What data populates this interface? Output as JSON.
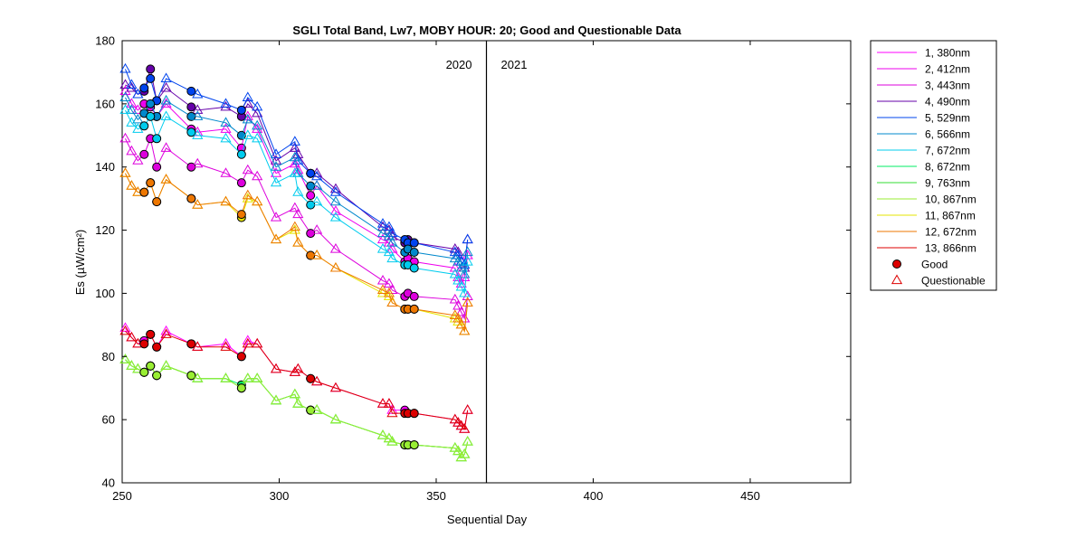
{
  "chart_data": {
    "type": "line",
    "title": "SGLI Total Band,  Lw7, MOBY HOUR: 20;  Good and Questionable Data",
    "xlabel": "Sequential Day",
    "ylabel": "Es (µW/cm²)",
    "xlim": [
      250,
      482
    ],
    "ylim": [
      40,
      180
    ],
    "xticks": [
      250,
      300,
      350,
      400,
      450
    ],
    "yticks": [
      40,
      60,
      80,
      100,
      120,
      140,
      160,
      180
    ],
    "grid": false,
    "legend_position": "outside-right",
    "year_divider": {
      "x": 366,
      "left_label": "2020",
      "right_label": "2021"
    },
    "legend_markers": {
      "good_label": "Good",
      "questionable_label": "Questionable"
    },
    "x": [
      251,
      253,
      255,
      257,
      259,
      261,
      264,
      272,
      274,
      283,
      288,
      290,
      293,
      299,
      305,
      306,
      310,
      312,
      318,
      333,
      335,
      336,
      340,
      341,
      343,
      356,
      357,
      358,
      359,
      360
    ],
    "series": [
      {
        "name": "1, 380nm",
        "color": "#ff00ff",
        "values": [
          89,
          86,
          84,
          85,
          87,
          83,
          88,
          84,
          83,
          84,
          80,
          85,
          84,
          76,
          75,
          76,
          73,
          72,
          70,
          65,
          65,
          63,
          63,
          62,
          62,
          60,
          59,
          58,
          57,
          63
        ],
        "good_x": [
          256,
          257,
          259,
          261,
          272,
          288,
          310,
          340,
          341,
          343
        ]
      },
      {
        "name": "2, 412nm",
        "color": "#ee00ee",
        "values": [
          164,
          160,
          158,
          160,
          159,
          156,
          160,
          152,
          151,
          152,
          146,
          156,
          152,
          138,
          141,
          139,
          131,
          134,
          126,
          117,
          116,
          114,
          110,
          111,
          110,
          108,
          105,
          103,
          105,
          112
        ],
        "good_x": [
          256,
          257,
          259,
          261,
          272,
          288,
          310,
          340,
          341,
          343
        ]
      },
      {
        "name": "3, 443nm",
        "color": "#dd00dd",
        "values": [
          149,
          145,
          142,
          144,
          149,
          140,
          146,
          140,
          141,
          138,
          135,
          139,
          137,
          124,
          127,
          125,
          119,
          120,
          114,
          104,
          103,
          101,
          99,
          100,
          99,
          98,
          96,
          94,
          92,
          99
        ],
        "good_x": [
          256,
          257,
          259,
          261,
          272,
          288,
          310,
          340,
          341,
          343
        ]
      },
      {
        "name": "4, 490nm",
        "color": "#6600aa",
        "values": [
          166,
          165,
          163,
          164,
          171,
          161,
          165,
          159,
          158,
          159,
          156,
          160,
          157,
          142,
          146,
          144,
          138,
          138,
          133,
          121,
          120,
          118,
          116,
          117,
          116,
          114,
          113,
          110,
          108,
          117
        ],
        "good_x": [
          256,
          257,
          259,
          261,
          272,
          288,
          310,
          340,
          341,
          343
        ]
      },
      {
        "name": "5, 529nm",
        "color": "#0044ee",
        "values": [
          171,
          166,
          163,
          165,
          168,
          161,
          168,
          164,
          163,
          160,
          158,
          162,
          159,
          144,
          148,
          142,
          138,
          137,
          132,
          122,
          121,
          119,
          117,
          116,
          116,
          113,
          112,
          110,
          109,
          117
        ],
        "good_x": [
          256,
          257,
          259,
          261,
          272,
          288,
          310,
          340,
          341,
          343
        ]
      },
      {
        "name": "6, 566nm",
        "color": "#0088cc",
        "values": [
          162,
          158,
          155,
          157,
          160,
          156,
          161,
          156,
          156,
          154,
          150,
          155,
          153,
          140,
          143,
          138,
          134,
          134,
          129,
          119,
          118,
          116,
          113,
          114,
          113,
          111,
          110,
          108,
          106,
          113
        ],
        "good_x": [
          256,
          257,
          259,
          261,
          272,
          288,
          310,
          340,
          341,
          343
        ]
      },
      {
        "name": "7, 672nm",
        "color": "#00ccee",
        "values": [
          158,
          154,
          152,
          153,
          156,
          149,
          156,
          151,
          150,
          149,
          144,
          150,
          149,
          135,
          138,
          132,
          128,
          129,
          124,
          114,
          113,
          111,
          109,
          109,
          108,
          106,
          104,
          102,
          100,
          110
        ],
        "good_x": [
          256,
          257,
          259,
          261,
          272,
          288,
          310,
          340,
          341,
          343
        ]
      },
      {
        "name": "8, 672nm",
        "color": "#00ee66",
        "values": [
          79,
          77,
          76,
          75,
          77,
          74,
          77,
          74,
          73,
          73,
          71,
          73,
          73,
          66,
          68,
          65,
          63,
          63,
          60,
          55,
          54,
          53,
          52,
          52,
          52,
          51,
          50,
          48,
          49,
          53
        ],
        "good_x": [
          256,
          257,
          259,
          261,
          272,
          288,
          310,
          340,
          341,
          343
        ]
      },
      {
        "name": "9, 763nm",
        "color": "#33dd33",
        "values": [
          79,
          77,
          76,
          75,
          77,
          74,
          77,
          74,
          73,
          73,
          70,
          73,
          73,
          66,
          68,
          65,
          63,
          63,
          60,
          55,
          54,
          53,
          52,
          52,
          52,
          51,
          50,
          48,
          49,
          53
        ],
        "good_x": [
          256,
          257,
          259,
          261,
          272,
          288,
          310,
          340,
          341,
          343
        ]
      },
      {
        "name": "10, 867nm",
        "color": "#99ee33",
        "values": [
          79,
          77,
          76,
          75,
          77,
          74,
          77,
          74,
          73,
          73,
          70,
          73,
          73,
          66,
          68,
          65,
          63,
          63,
          60,
          55,
          54,
          53,
          52,
          52,
          52,
          51,
          50,
          48,
          49,
          53
        ],
        "good_x": [
          256,
          257,
          259,
          261,
          272,
          288,
          310,
          340,
          341,
          343
        ]
      },
      {
        "name": "11, 867nm",
        "color": "#e6e600",
        "values": [
          138,
          134,
          132,
          132,
          135,
          129,
          136,
          130,
          128,
          129,
          124,
          130,
          129,
          117,
          120,
          116,
          112,
          112,
          108,
          100,
          99,
          97,
          95,
          95,
          95,
          92,
          91,
          90,
          88,
          97
        ],
        "good_x": [
          256,
          257,
          259,
          261,
          272,
          288,
          310,
          340,
          341,
          343
        ]
      },
      {
        "name": "12, 672nm",
        "color": "#ee7700",
        "values": [
          138,
          134,
          132,
          132,
          135,
          129,
          136,
          130,
          128,
          129,
          125,
          131,
          129,
          117,
          121,
          116,
          112,
          112,
          108,
          101,
          100,
          97,
          95,
          95,
          95,
          93,
          92,
          90,
          88,
          97
        ],
        "good_x": [
          256,
          257,
          259,
          261,
          272,
          288,
          310,
          340,
          341,
          343
        ]
      },
      {
        "name": "13, 866nm",
        "color": "#dd0000",
        "values": [
          88,
          86,
          84,
          84,
          87,
          83,
          87,
          84,
          83,
          83,
          80,
          84,
          84,
          76,
          75,
          76,
          73,
          72,
          70,
          65,
          65,
          62,
          62,
          62,
          62,
          60,
          59,
          58,
          57,
          63
        ],
        "good_x": [
          256,
          257,
          259,
          261,
          272,
          288,
          310,
          340,
          341,
          343
        ]
      }
    ]
  }
}
